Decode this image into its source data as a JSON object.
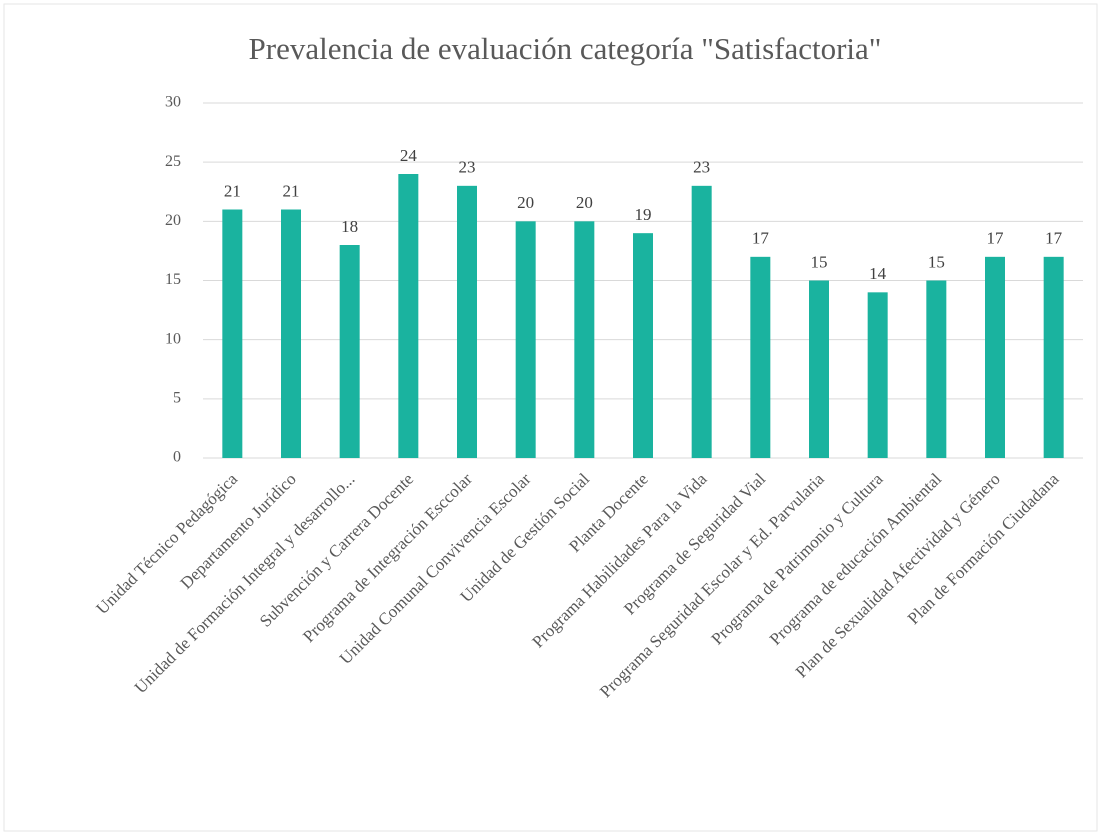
{
  "chart_data": {
    "type": "bar",
    "title": "Prevalencia de evaluación categoría \"Satisfactoria\"",
    "categories": [
      "Unidad Técnico Pedagógica",
      "Departamento Jurídico",
      "Unidad de Formación Integral y desarrollo...",
      "Subvención y Carrera Docente",
      "Programa de Integración Esccolar",
      "Unidad Comunal Convivencia Escolar",
      "Unidad de Gestión Social",
      "Planta Docente",
      "Programa Habilidades Para la Vida",
      "Programa de Seguridad Vial",
      "Programa Seguridad Escolar y Ed. Parvularia",
      "Programa de Patrimonio y Cultura",
      "Programa de educación Ambiental",
      "Plan de Sexualidad Afectividad y Género",
      "Plan de Formación Ciudadana"
    ],
    "values": [
      21,
      21,
      18,
      24,
      23,
      20,
      20,
      19,
      23,
      17,
      15,
      14,
      15,
      17,
      17
    ],
    "color": "#1ab39f",
    "ylim": [
      0,
      30
    ],
    "yticks": [
      0,
      5,
      10,
      15,
      20,
      25,
      30
    ],
    "grid": true
  }
}
